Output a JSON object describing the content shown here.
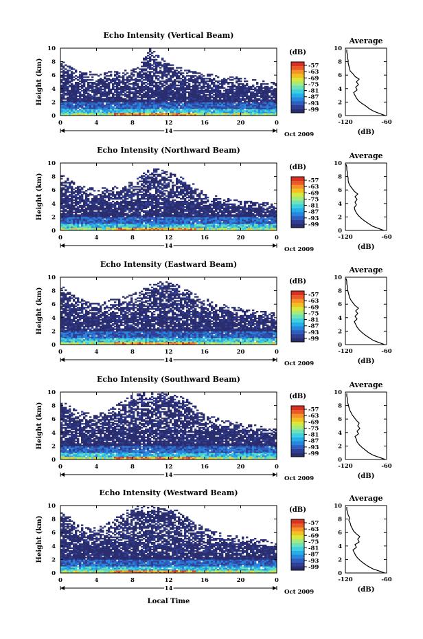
{
  "figure": {
    "xlabel": "Local Time",
    "date_label": "Oct 2009",
    "day_label": "14",
    "unit_label": "(dB)",
    "average_title": "Average",
    "average_xlabel": "(dB)"
  },
  "colorscale": {
    "ticks": [
      "-57",
      "-63",
      "-69",
      "-75",
      "-81",
      "-87",
      "-93",
      "-99"
    ],
    "colors": [
      "#2a2d6e",
      "#303e95",
      "#2e5fbe",
      "#2a86dc",
      "#25aee8",
      "#3fd0e0",
      "#6de2b8",
      "#a6ea7c",
      "#d8e83c",
      "#f2c020",
      "#f5922a",
      "#ea5a28",
      "#d83224"
    ]
  },
  "chart_data": [
    {
      "type": "heatmap",
      "title": "Echo Intensity (Vertical Beam)",
      "xlabel": "",
      "ylabel": "Height (km)",
      "xlim": [
        0,
        24
      ],
      "ylim": [
        0,
        10
      ],
      "xticks": [
        "0",
        "4",
        "8",
        "12",
        "16",
        "20",
        "0"
      ],
      "yticks": [
        "0",
        "2",
        "4",
        "6",
        "8",
        "10"
      ],
      "grid": false,
      "echo_tops_km": [
        8.0,
        6.4,
        6.2,
        6.3,
        6.6,
        9.8,
        7.5,
        6.6,
        6.2,
        5.7,
        5.4,
        5.0,
        4.6
      ],
      "average_profile": {
        "xlim": [
          -120,
          -60
        ],
        "xticks": [
          "-120",
          "-60"
        ],
        "height_km": [
          0.0,
          0.3,
          0.6,
          1.0,
          1.4,
          1.8,
          2.2,
          2.6,
          3.0,
          3.4,
          3.8,
          4.2,
          4.6,
          5.0,
          5.4,
          5.8,
          6.2,
          6.6,
          7.0,
          7.4,
          7.8,
          8.2,
          8.6,
          9.0,
          9.4,
          9.8
        ],
        "intensity_db": [
          -62,
          -70,
          -78,
          -85,
          -90,
          -96,
          -101,
          -104,
          -106,
          -108,
          -103,
          -105,
          -101,
          -104,
          -100,
          -106,
          -109,
          -113,
          -114,
          -115,
          -116,
          -116,
          -117,
          -117,
          -118,
          -118
        ]
      }
    },
    {
      "type": "heatmap",
      "title": "Echo Intensity (Northward Beam)",
      "xlabel": "",
      "ylabel": "Height (km)",
      "xlim": [
        0,
        24
      ],
      "ylim": [
        0,
        10
      ],
      "xticks": [
        "0",
        "4",
        "8",
        "12",
        "16",
        "20",
        "0"
      ],
      "yticks": [
        "0",
        "2",
        "4",
        "6",
        "8",
        "10"
      ],
      "grid": false,
      "echo_tops_km": [
        8.2,
        6.4,
        6.0,
        6.4,
        7.0,
        9.2,
        8.4,
        7.5,
        5.4,
        4.6,
        4.2,
        4.0,
        3.8
      ],
      "average_profile": {
        "xlim": [
          -120,
          -60
        ],
        "xticks": [
          "-120",
          "-60"
        ],
        "height_km": [
          0.0,
          0.3,
          0.6,
          1.0,
          1.4,
          1.8,
          2.2,
          2.6,
          3.0,
          3.4,
          3.8,
          4.2,
          4.6,
          5.0,
          5.4,
          5.8,
          6.2,
          6.6,
          7.0,
          7.4,
          7.8,
          8.2,
          8.6,
          9.0,
          9.4,
          9.8
        ],
        "intensity_db": [
          -64,
          -72,
          -80,
          -86,
          -92,
          -97,
          -101,
          -104,
          -106,
          -107,
          -104,
          -106,
          -103,
          -106,
          -102,
          -107,
          -110,
          -113,
          -115,
          -116,
          -116,
          -117,
          -117,
          -118,
          -118,
          -119
        ]
      }
    },
    {
      "type": "heatmap",
      "title": "Echo Intensity (Eastward Beam)",
      "xlabel": "",
      "ylabel": "Height (km)",
      "xlim": [
        0,
        24
      ],
      "ylim": [
        0,
        10
      ],
      "xticks": [
        "0",
        "4",
        "8",
        "12",
        "16",
        "20",
        "0"
      ],
      "yticks": [
        "0",
        "2",
        "4",
        "6",
        "8",
        "10"
      ],
      "grid": false,
      "echo_tops_km": [
        8.6,
        6.6,
        6.2,
        6.6,
        7.2,
        8.8,
        9.4,
        8.0,
        6.6,
        5.8,
        5.2,
        4.8,
        4.4
      ],
      "average_profile": {
        "xlim": [
          -120,
          -60
        ],
        "xticks": [
          "-120",
          "-60"
        ],
        "height_km": [
          0.0,
          0.3,
          0.6,
          1.0,
          1.4,
          1.8,
          2.2,
          2.6,
          3.0,
          3.4,
          3.8,
          4.2,
          4.6,
          5.0,
          5.4,
          5.8,
          6.2,
          6.6,
          7.0,
          7.4,
          7.8,
          8.2,
          8.6,
          9.0,
          9.4,
          9.8
        ],
        "intensity_db": [
          -63,
          -71,
          -79,
          -85,
          -91,
          -96,
          -100,
          -103,
          -105,
          -107,
          -103,
          -106,
          -102,
          -105,
          -101,
          -106,
          -109,
          -112,
          -114,
          -115,
          -116,
          -117,
          -117,
          -118,
          -118,
          -119
        ]
      }
    },
    {
      "type": "heatmap",
      "title": "Echo Intensity (Southward Beam)",
      "xlabel": "",
      "ylabel": "Height (km)",
      "xlim": [
        0,
        24
      ],
      "ylim": [
        0,
        10
      ],
      "xticks": [
        "0",
        "4",
        "8",
        "12",
        "16",
        "20",
        "0"
      ],
      "yticks": [
        "0",
        "2",
        "4",
        "6",
        "8",
        "10"
      ],
      "grid": false,
      "echo_tops_km": [
        8.6,
        7.0,
        6.4,
        7.6,
        9.6,
        9.8,
        9.6,
        8.8,
        6.6,
        5.6,
        5.2,
        4.8,
        4.4
      ],
      "average_profile": {
        "xlim": [
          -120,
          -60
        ],
        "xticks": [
          "-120",
          "-60"
        ],
        "height_km": [
          0.0,
          0.3,
          0.6,
          1.0,
          1.4,
          1.8,
          2.2,
          2.6,
          3.0,
          3.4,
          3.8,
          4.2,
          4.6,
          5.0,
          5.4,
          5.8,
          6.2,
          6.6,
          7.0,
          7.4,
          7.8,
          8.2,
          8.6,
          9.0,
          9.4,
          9.8
        ],
        "intensity_db": [
          -62,
          -70,
          -79,
          -86,
          -91,
          -96,
          -100,
          -103,
          -104,
          -106,
          -101,
          -103,
          -99,
          -102,
          -100,
          -104,
          -107,
          -110,
          -112,
          -114,
          -115,
          -116,
          -117,
          -117,
          -118,
          -118
        ]
      }
    },
    {
      "type": "heatmap",
      "title": "Echo Intensity (Westward Beam)",
      "xlabel": "",
      "ylabel": "Height (km)",
      "xlim": [
        0,
        24
      ],
      "ylim": [
        0,
        10
      ],
      "xticks": [
        "0",
        "4",
        "8",
        "12",
        "16",
        "20",
        "0"
      ],
      "yticks": [
        "0",
        "2",
        "4",
        "6",
        "8",
        "10"
      ],
      "grid": false,
      "echo_tops_km": [
        9.2,
        7.0,
        6.4,
        7.8,
        9.6,
        9.8,
        9.6,
        8.4,
        6.4,
        5.6,
        5.2,
        4.8,
        4.4
      ],
      "average_profile": {
        "xlim": [
          -120,
          -60
        ],
        "xticks": [
          "-120",
          "-60"
        ],
        "height_km": [
          0.0,
          0.3,
          0.6,
          1.0,
          1.4,
          1.8,
          2.2,
          2.6,
          3.0,
          3.4,
          3.8,
          4.2,
          4.6,
          5.0,
          5.4,
          5.8,
          6.2,
          6.6,
          7.0,
          7.4,
          7.8,
          8.2,
          8.6,
          9.0,
          9.4,
          9.8
        ],
        "intensity_db": [
          -63,
          -71,
          -80,
          -87,
          -93,
          -98,
          -102,
          -105,
          -107,
          -109,
          -104,
          -106,
          -100,
          -102,
          -99,
          -104,
          -108,
          -110,
          -112,
          -113,
          -115,
          -114,
          -116,
          -117,
          -118,
          -118
        ]
      }
    }
  ]
}
